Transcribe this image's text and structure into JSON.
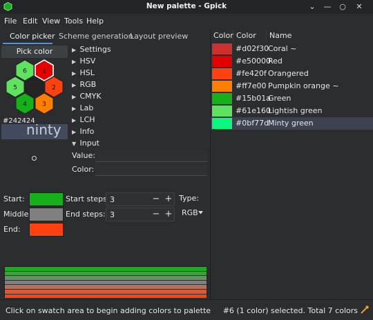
{
  "window": {
    "title": "New palette - Gpick"
  },
  "menu": [
    "File",
    "Edit",
    "View",
    "Tools",
    "Help"
  ],
  "tabs": [
    "Color picker",
    "Scheme generation",
    "Layout preview"
  ],
  "picker": {
    "pick_label": "Pick color",
    "hex_numbers": [
      "6",
      "1",
      "2",
      "3",
      "4",
      "5"
    ],
    "hex_colors": [
      "#ffffff",
      "#e50000",
      "#fe420f",
      "#ff7e00",
      "#15b01a",
      "#61e160"
    ],
    "picked_hex": "#242424",
    "preview_ghost_text": "ninty ("
  },
  "expanders": [
    {
      "label": "Settings",
      "arrow": "▶"
    },
    {
      "label": "HSV",
      "arrow": "▶"
    },
    {
      "label": "HSL",
      "arrow": "▶"
    },
    {
      "label": "RGB",
      "arrow": "▶"
    },
    {
      "label": "CMYK",
      "arrow": "▶"
    },
    {
      "label": "Lab",
      "arrow": "▶"
    },
    {
      "label": "LCH",
      "arrow": "▶"
    },
    {
      "label": "Info",
      "arrow": "▶"
    },
    {
      "label": "Input",
      "arrow": "▼"
    }
  ],
  "input_fields": {
    "value_label": "Value:",
    "color_label": "Color:",
    "value": "",
    "color": ""
  },
  "gradient": {
    "start_label": "Start:",
    "middle_label": "Middle:",
    "end_label": "End:",
    "start_color": "#15b01a",
    "middle_color": "#808080",
    "end_color": "#fe420f",
    "start_steps_label": "Start steps:",
    "end_steps_label": "End steps:",
    "start_steps": "3",
    "end_steps": "3",
    "type_label": "Type:",
    "type_value": "RGB",
    "rows": [
      "#15b01a",
      "#3da13f",
      "#659266",
      "#808080",
      "#b1725f",
      "#d85a3a",
      "#fe420f"
    ]
  },
  "palette": {
    "headers": [
      "Color",
      "Color",
      "Name"
    ],
    "rows": [
      {
        "hex": "#d02f30",
        "name": "Coral ~",
        "color": "#d02f30",
        "selected": false
      },
      {
        "hex": "#e50000",
        "name": "Red",
        "color": "#e50000",
        "selected": false
      },
      {
        "hex": "#fe420f",
        "name": "Orangered",
        "color": "#fe420f",
        "selected": false
      },
      {
        "hex": "#ff7e00",
        "name": "Pumpkin orange ~",
        "color": "#ff7e00",
        "selected": false
      },
      {
        "hex": "#15b01a",
        "name": "Green",
        "color": "#15b01a",
        "selected": false
      },
      {
        "hex": "#61e160",
        "name": "Lightish green",
        "color": "#61e160",
        "selected": false
      },
      {
        "hex": "#0bf77d",
        "name": "Minty green",
        "color": "#0bf77d",
        "selected": true
      }
    ]
  },
  "status": {
    "left": "Click on swatch area to begin adding colors to palette",
    "right": "#6 (1 color) selected. Total 7 colors"
  },
  "colors": {
    "accent": "#5294e2",
    "selection": "#3c4250"
  }
}
